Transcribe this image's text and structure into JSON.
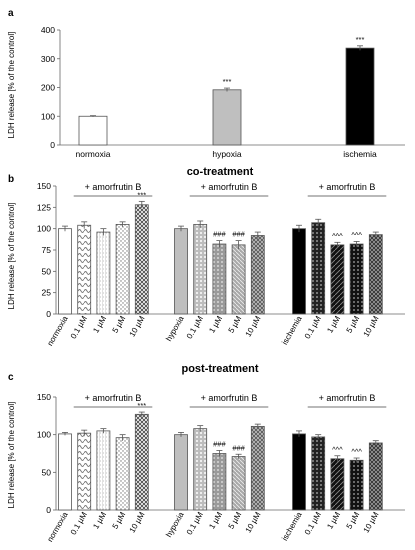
{
  "figure": {
    "treatment_labels": [
      "co-treatment",
      "post-treatment"
    ]
  },
  "chart_data": [
    {
      "panel": "a",
      "type": "bar",
      "ylabel": "LDH release [% of the control]",
      "ylim": [
        0,
        400
      ],
      "yticks": [
        0,
        100,
        200,
        300,
        400
      ],
      "grid": false,
      "categories": [
        "normoxia",
        "hypoxia",
        "ischemia"
      ],
      "values": [
        100,
        192,
        337
      ],
      "errors": [
        2,
        6,
        8
      ],
      "annotations": [
        "",
        "***",
        "***"
      ],
      "colors": [
        "#ffffff",
        "#bfbfbf",
        "#000000"
      ]
    },
    {
      "panel": "b",
      "type": "bar",
      "title": "co-treatment",
      "ylabel": "LDH release [% of the control]",
      "ylim": [
        0,
        150
      ],
      "yticks": [
        0,
        25,
        50,
        75,
        100,
        125,
        150
      ],
      "grid": false,
      "categories": [
        "normoxia",
        "0.1 µM",
        "1 µM",
        "5 µM",
        "10 µM",
        "hypoxia",
        "0.1 µM",
        "1 µM",
        "5 µM",
        "10 µM",
        "ischemia",
        "0.1 µM",
        "1 µM",
        "5 µM",
        "10 µM"
      ],
      "values": [
        100,
        104,
        96,
        105,
        128,
        100,
        105,
        82,
        81,
        92,
        100,
        107,
        81,
        82,
        93
      ],
      "errors": [
        3,
        4,
        4,
        3,
        4,
        3,
        4,
        4,
        5,
        4,
        4,
        4,
        3,
        3,
        3
      ],
      "annotations": [
        "",
        "",
        "",
        "",
        "***",
        "",
        "",
        "###",
        "###",
        "",
        "",
        "",
        "^^^",
        "^^^",
        ""
      ],
      "bracket_label": "+ amorfrutin B"
    },
    {
      "panel": "c",
      "type": "bar",
      "title": "post-treatment",
      "ylabel": "LDH release [% of the control]",
      "ylim": [
        0,
        150
      ],
      "yticks": [
        0,
        50,
        100,
        150
      ],
      "grid": false,
      "categories": [
        "normoxia",
        "0.1 µM",
        "1 µM",
        "5 µM",
        "10 µM",
        "hypoxia",
        "0.1 µM",
        "1 µM",
        "5 µM",
        "10 µM",
        "ischemia",
        "0.1 µM",
        "1 µM",
        "5 µM",
        "10 µM"
      ],
      "values": [
        101,
        102,
        105,
        96,
        127,
        100,
        108,
        75,
        71,
        111,
        101,
        97,
        68,
        66,
        89
      ],
      "errors": [
        2,
        4,
        3,
        4,
        3,
        3,
        4,
        4,
        3,
        3,
        4,
        3,
        4,
        3,
        3
      ],
      "annotations": [
        "",
        "",
        "",
        "",
        "***",
        "",
        "",
        "###",
        "###",
        "",
        "",
        "",
        "^^^",
        "^^^",
        ""
      ],
      "bracket_label": "+ amorfrutin B"
    }
  ]
}
